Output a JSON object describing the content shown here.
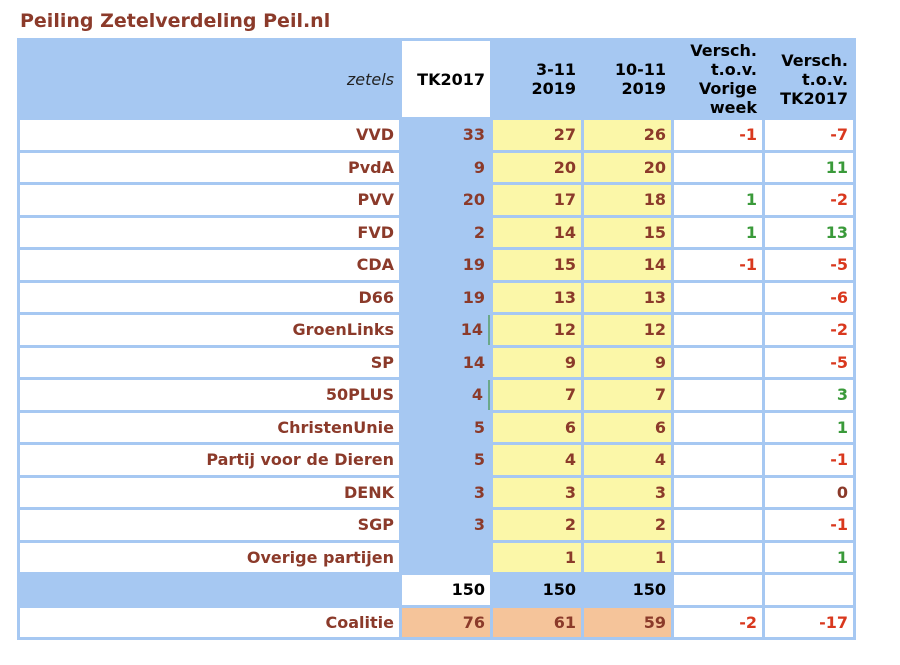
{
  "title": "Peiling Zetelverdeling Peil.nl",
  "header": {
    "zetels": "zetels",
    "tk2017": "TK2017",
    "poll1": [
      "3-11",
      "2019"
    ],
    "poll2": [
      "10-11",
      "2019"
    ],
    "diff_week": [
      "Versch.",
      "t.o.v.",
      "Vorige",
      "week"
    ],
    "diff_tk": [
      "Versch.",
      "t.o.v.",
      "TK2017"
    ]
  },
  "rows": [
    {
      "party": "VVD",
      "tk2017": "33",
      "poll1": "27",
      "poll2": "26",
      "diff_week": "-1",
      "diff_tk": "-7"
    },
    {
      "party": "PvdA",
      "tk2017": "9",
      "poll1": "20",
      "poll2": "20",
      "diff_week": "",
      "diff_tk": "11"
    },
    {
      "party": "PVV",
      "tk2017": "20",
      "poll1": "17",
      "poll2": "18",
      "diff_week": "1",
      "diff_tk": "-2"
    },
    {
      "party": "FVD",
      "tk2017": "2",
      "poll1": "14",
      "poll2": "15",
      "diff_week": "1",
      "diff_tk": "13"
    },
    {
      "party": "CDA",
      "tk2017": "19",
      "poll1": "15",
      "poll2": "14",
      "diff_week": "-1",
      "diff_tk": "-5"
    },
    {
      "party": "D66",
      "tk2017": "19",
      "poll1": "13",
      "poll2": "13",
      "diff_week": "",
      "diff_tk": "-6"
    },
    {
      "party": "GroenLinks",
      "tk2017": "14",
      "poll1": "12",
      "poll2": "12",
      "diff_week": "",
      "diff_tk": "-2"
    },
    {
      "party": "SP",
      "tk2017": "14",
      "poll1": "9",
      "poll2": "9",
      "diff_week": "",
      "diff_tk": "-5"
    },
    {
      "party": "50PLUS",
      "tk2017": "4",
      "poll1": "7",
      "poll2": "7",
      "diff_week": "",
      "diff_tk": "3"
    },
    {
      "party": "ChristenUnie",
      "tk2017": "5",
      "poll1": "6",
      "poll2": "6",
      "diff_week": "",
      "diff_tk": "1"
    },
    {
      "party": "Partij voor de Dieren",
      "tk2017": "5",
      "poll1": "4",
      "poll2": "4",
      "diff_week": "",
      "diff_tk": "-1"
    },
    {
      "party": "DENK",
      "tk2017": "3",
      "poll1": "3",
      "poll2": "3",
      "diff_week": "",
      "diff_tk": "0"
    },
    {
      "party": "SGP",
      "tk2017": "3",
      "poll1": "2",
      "poll2": "2",
      "diff_week": "",
      "diff_tk": "-1"
    },
    {
      "party": "Overige partijen",
      "tk2017": "",
      "poll1": "1",
      "poll2": "1",
      "diff_week": "",
      "diff_tk": "1"
    }
  ],
  "totals": {
    "tk2017": "150",
    "poll1": "150",
    "poll2": "150"
  },
  "coalition": {
    "label": "Coalitie",
    "tk2017": "76",
    "poll1": "61",
    "poll2": "59",
    "diff_week": "-2",
    "diff_tk": "-17"
  },
  "colors": {
    "header_blue": "#a6c8f2",
    "poll_yellow": "#fbf7a8",
    "coalition_orange": "#f5c49a",
    "text_brown": "#8b3a2a",
    "negative_red": "#d9381e",
    "positive_green": "#3a9a3a"
  }
}
